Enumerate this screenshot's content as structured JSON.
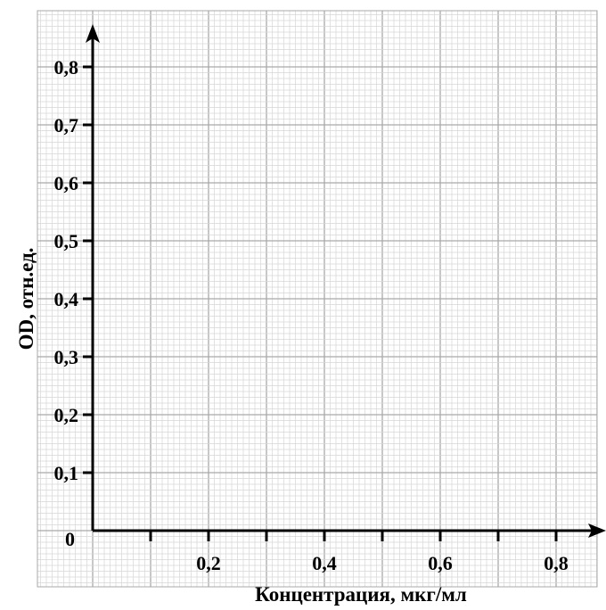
{
  "chart_data": {
    "type": "scatter",
    "title": "",
    "xlabel": "Концентрация, мкг/мл",
    "ylabel": "OD, отн.ед.",
    "origin_label": "0",
    "xlim": [
      0,
      0.85
    ],
    "ylim": [
      0,
      0.8
    ],
    "x_ticks": [
      0.1,
      0.2,
      0.3,
      0.4,
      0.5,
      0.6,
      0.7,
      0.8
    ],
    "x_tick_labels": [
      {
        "value": 0.2,
        "label": "0,2"
      },
      {
        "value": 0.4,
        "label": "0,4"
      },
      {
        "value": 0.6,
        "label": "0,6"
      },
      {
        "value": 0.8,
        "label": "0,8"
      }
    ],
    "y_ticks": [
      0.1,
      0.2,
      0.3,
      0.4,
      0.5,
      0.6,
      0.7,
      0.8
    ],
    "y_tick_labels": [
      {
        "value": 0.1,
        "label": "0,1"
      },
      {
        "value": 0.2,
        "label": "0,2"
      },
      {
        "value": 0.3,
        "label": "0,3"
      },
      {
        "value": 0.4,
        "label": "0,4"
      },
      {
        "value": 0.5,
        "label": "0,5"
      },
      {
        "value": 0.6,
        "label": "0,6"
      },
      {
        "value": 0.7,
        "label": "0,7"
      },
      {
        "value": 0.8,
        "label": "0,8"
      }
    ],
    "grid": true,
    "series": []
  },
  "colors": {
    "grid_minor": "#d6d6d6",
    "grid_major": "#a9a9a9",
    "axis": "#000000",
    "background": "#ffffff"
  }
}
